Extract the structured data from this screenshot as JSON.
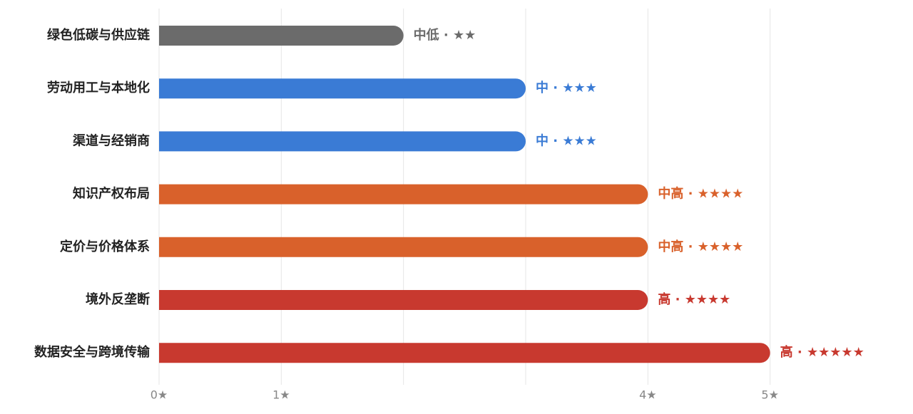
{
  "chart_data": {
    "type": "bar",
    "orientation": "horizontal",
    "categories": [
      "绿色低碳与供应链",
      "劳动用工与本地化",
      "渠道与经销商",
      "知识产权布局",
      "定价与价格体系",
      "境外反垄断",
      "数据安全与跨境传输"
    ],
    "values": [
      2,
      3,
      3,
      4,
      4,
      4,
      5
    ],
    "value_labels": [
      "中低 · ★★",
      "中 · ★★★",
      "中 · ★★★",
      "中高 · ★★★★",
      "中高 · ★★★★",
      "高 · ★★★★",
      "高 · ★★★★★"
    ],
    "colors": [
      "#6b6b6b",
      "#3a7bd5",
      "#3a7bd5",
      "#d9612b",
      "#d9612b",
      "#c8392f",
      "#c8392f"
    ],
    "xlim": [
      0,
      6
    ],
    "xticks": [
      {
        "value": 0,
        "label": "0★"
      },
      {
        "value": 1,
        "label": "1★"
      },
      {
        "value": 2,
        "label": null
      },
      {
        "value": 3,
        "label": null
      },
      {
        "value": 4,
        "label": "4★"
      },
      {
        "value": 5,
        "label": "5★"
      }
    ],
    "grid": true
  }
}
